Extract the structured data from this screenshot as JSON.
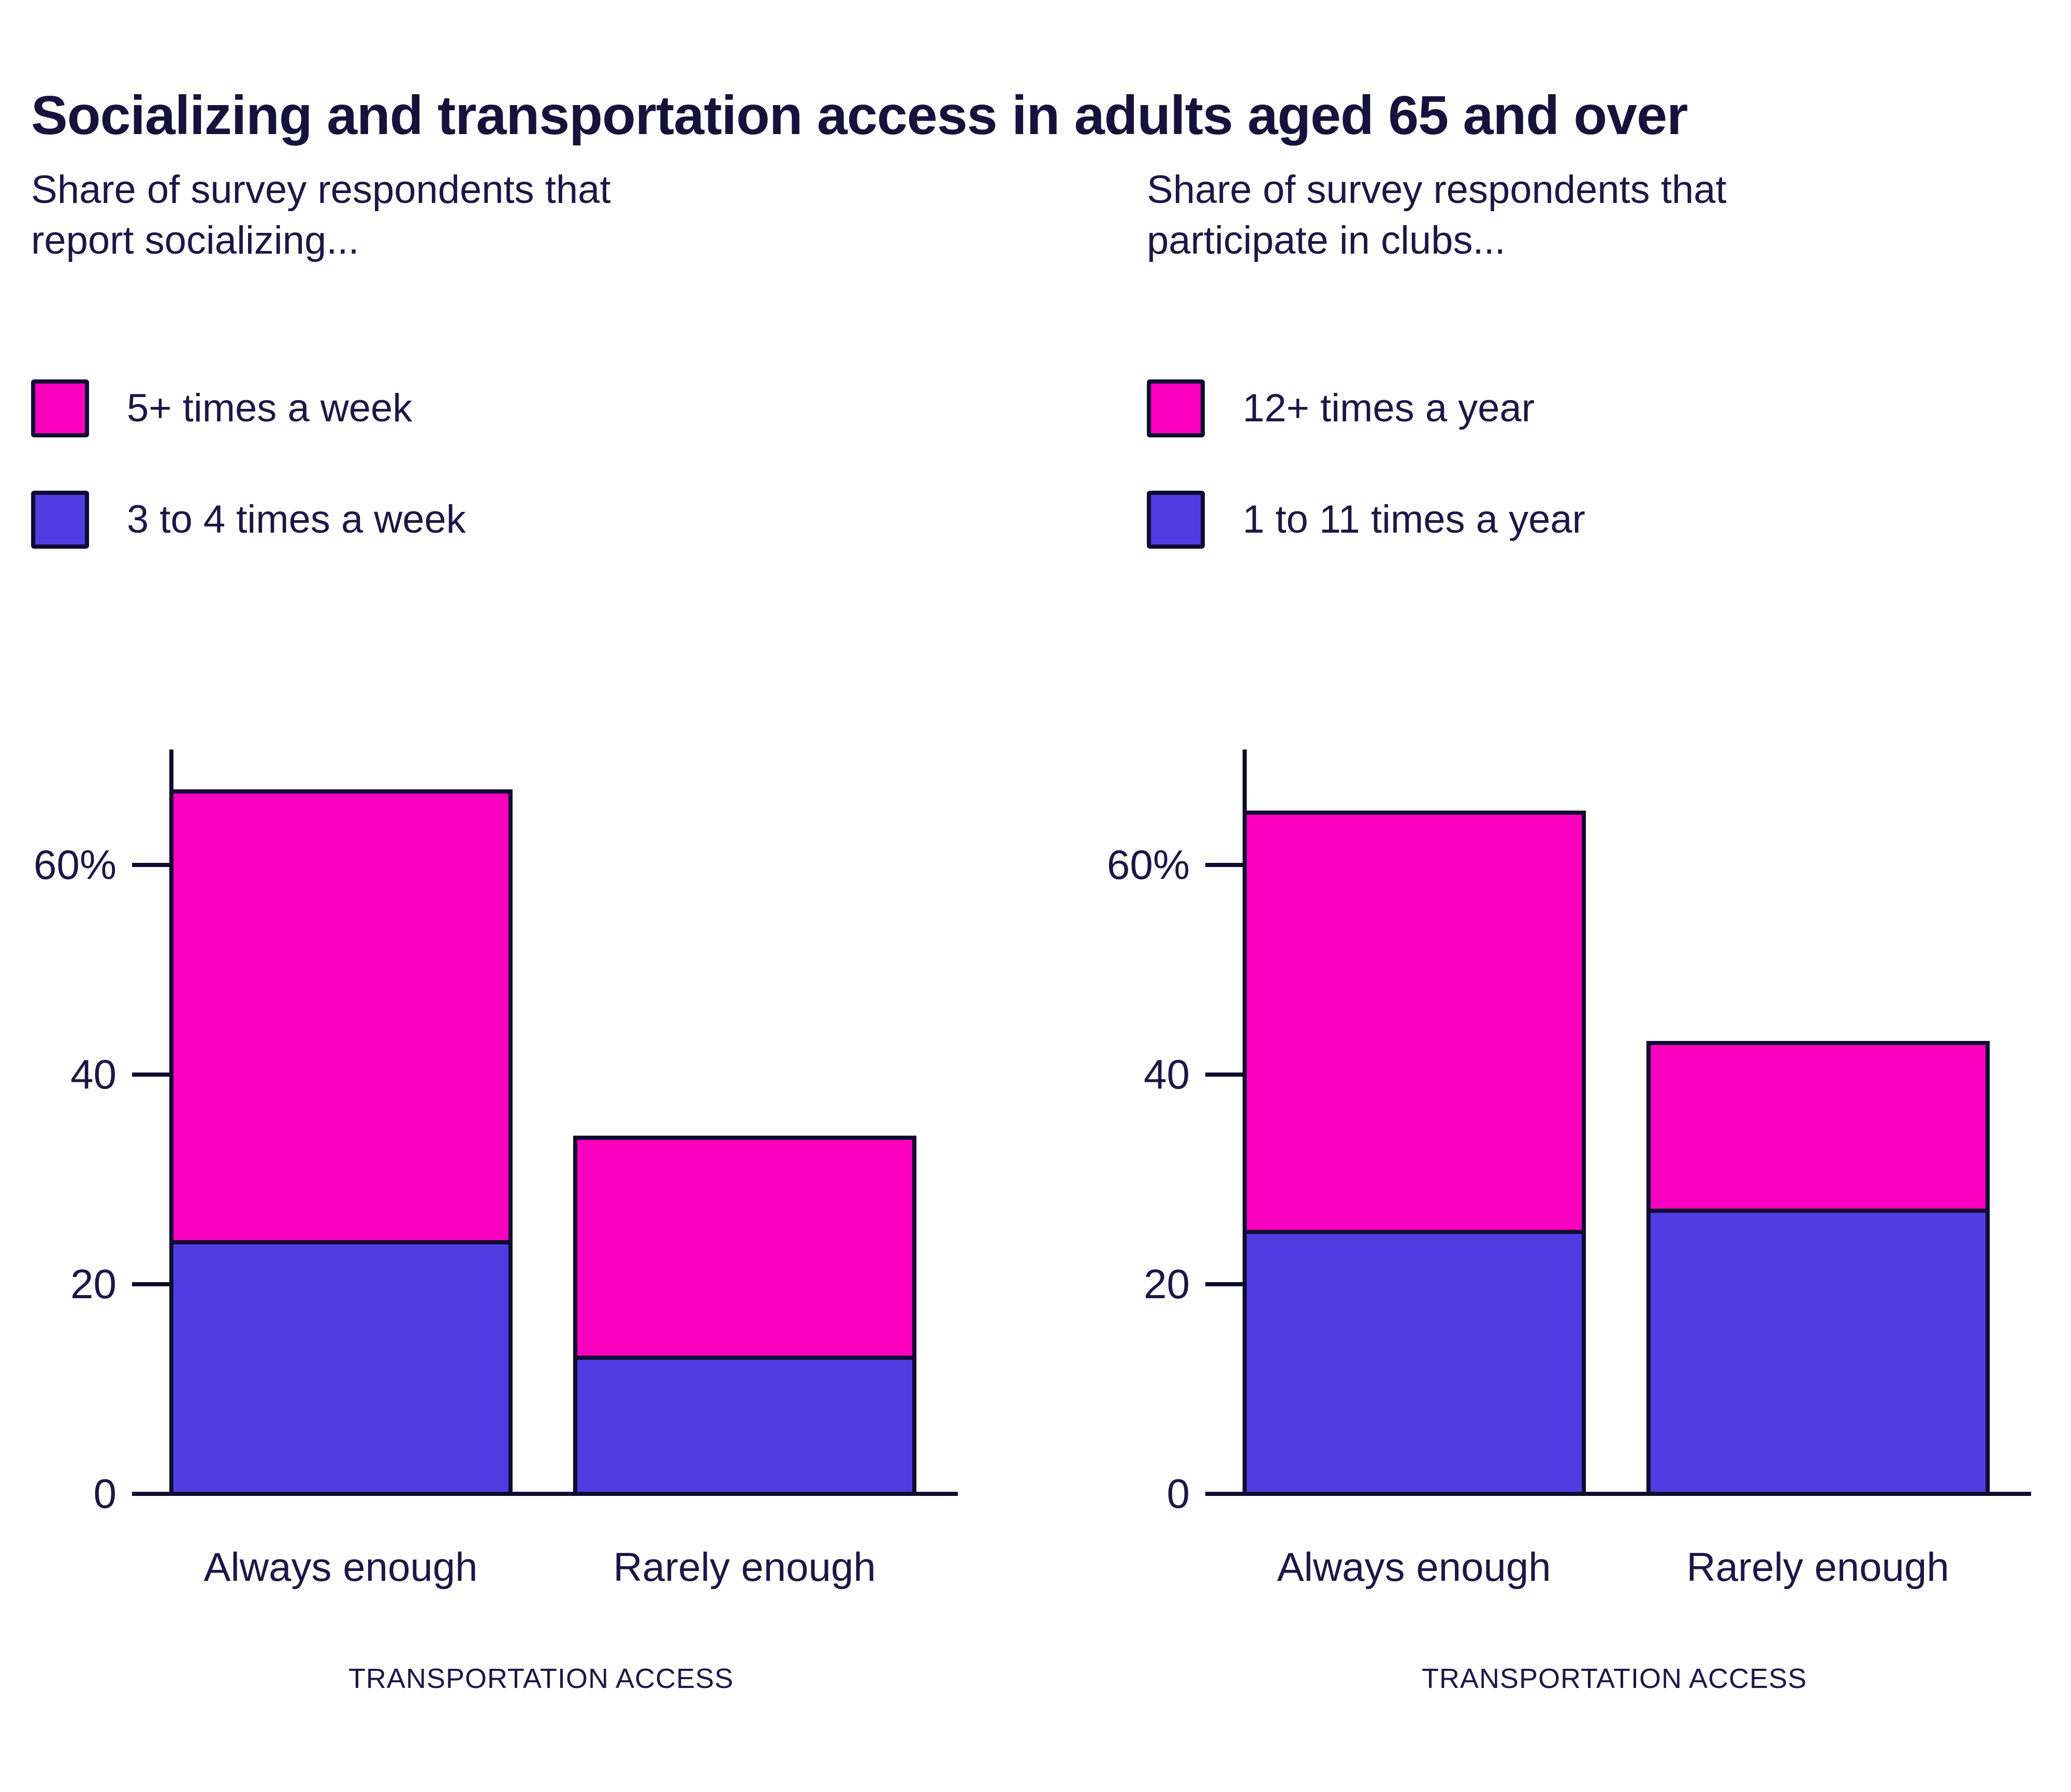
{
  "page": {
    "title": "Socializing and transportation access in adults aged 65 and over"
  },
  "colors": {
    "pink": "#fa00be",
    "blue": "#4f3ce2",
    "ink": "#1d1645",
    "line": "#0f0c30",
    "background": "#ffffff"
  },
  "chart_data": [
    {
      "type": "bar",
      "stacked": true,
      "title": "Share of survey respondents that report socializing...",
      "subtitle_lines": [
        "Share of survey respondents that",
        "report socializing..."
      ],
      "categories": [
        "Always enough",
        "Rarely enough"
      ],
      "series": [
        {
          "name": "5+ times a week",
          "color": "#fa00be",
          "values": [
            43,
            21
          ]
        },
        {
          "name": "3 to 4 times a week",
          "color": "#4f3ce2",
          "values": [
            24,
            13
          ]
        }
      ],
      "totals": [
        67,
        34
      ],
      "xlabel": "TRANSPORTATION ACCESS",
      "ylabel": "",
      "ylim": [
        0,
        70
      ],
      "y_ticks": [
        {
          "value": 60,
          "label": "60%"
        },
        {
          "value": 40,
          "label": "40"
        },
        {
          "value": 20,
          "label": "20"
        },
        {
          "value": 0,
          "label": "0"
        }
      ],
      "grid": false,
      "legend_position": "top-left"
    },
    {
      "type": "bar",
      "stacked": true,
      "title": "Share of survey respondents that participate in clubs...",
      "subtitle_lines": [
        "Share of survey respondents that",
        "participate in clubs..."
      ],
      "categories": [
        "Always enough",
        "Rarely enough"
      ],
      "series": [
        {
          "name": "12+ times a year",
          "color": "#fa00be",
          "values": [
            40,
            16
          ]
        },
        {
          "name": "1 to 11 times a year",
          "color": "#4f3ce2",
          "values": [
            25,
            27
          ]
        }
      ],
      "totals": [
        65,
        43
      ],
      "xlabel": "TRANSPORTATION ACCESS",
      "ylabel": "",
      "ylim": [
        0,
        70
      ],
      "y_ticks": [
        {
          "value": 60,
          "label": "60%"
        },
        {
          "value": 40,
          "label": "40"
        },
        {
          "value": 20,
          "label": "20"
        },
        {
          "value": 0,
          "label": "0"
        }
      ],
      "grid": false,
      "legend_position": "top-left"
    }
  ]
}
